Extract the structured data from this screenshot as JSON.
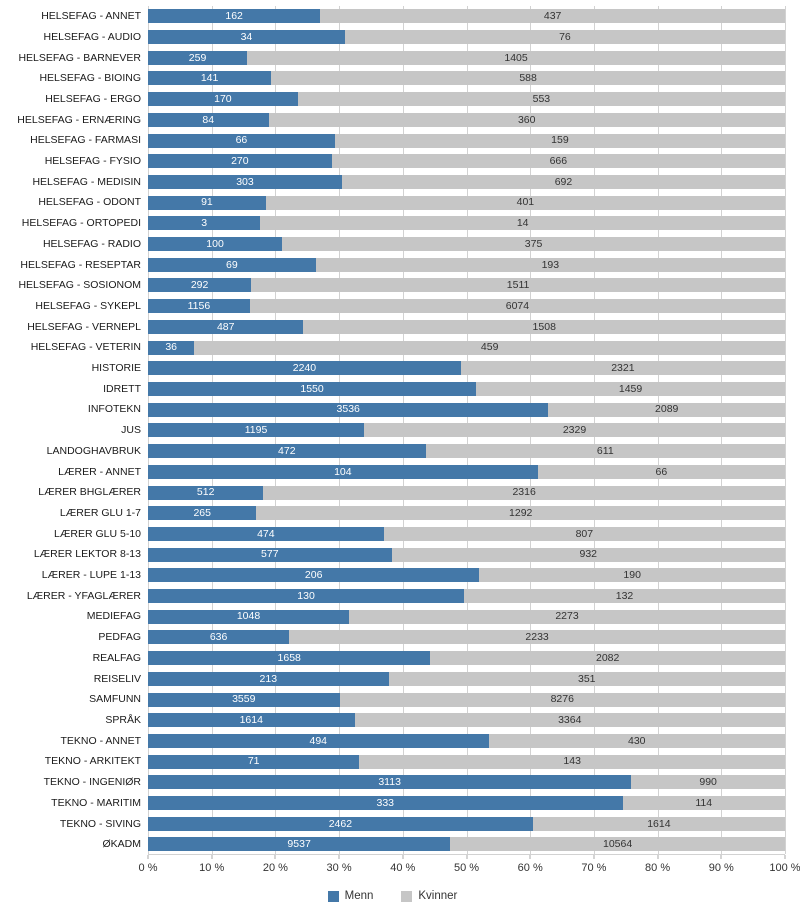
{
  "chart_data": {
    "type": "bar",
    "variant": "stacked-100-percent",
    "orientation": "horizontal",
    "title": "",
    "xlabel": "",
    "ylabel": "",
    "xlim": [
      0,
      100
    ],
    "grid": true,
    "legend_position": "bottom",
    "x_ticks": [
      "0 %",
      "10 %",
      "20 %",
      "30 %",
      "40 %",
      "50 %",
      "60 %",
      "70 %",
      "80 %",
      "90 %",
      "100 %"
    ],
    "categories": [
      "HELSEFAG - ANNET",
      "HELSEFAG - AUDIO",
      "HELSEFAG - BARNEVER",
      "HELSEFAG - BIOING",
      "HELSEFAG - ERGO",
      "HELSEFAG - ERNÆRING",
      "HELSEFAG - FARMASI",
      "HELSEFAG - FYSIO",
      "HELSEFAG - MEDISIN",
      "HELSEFAG - ODONT",
      "HELSEFAG - ORTOPEDI",
      "HELSEFAG - RADIO",
      "HELSEFAG - RESEPTAR",
      "HELSEFAG - SOSIONOM",
      "HELSEFAG - SYKEPL",
      "HELSEFAG - VERNEPL",
      "HELSEFAG - VETERIN",
      "HISTORIE",
      "IDRETT",
      "INFOTEKN",
      "JUS",
      "LANDOGHAVBRUK",
      "LÆRER - ANNET",
      "LÆRER BHGLÆRER",
      "LÆRER GLU 1-7",
      "LÆRER GLU 5-10",
      "LÆRER LEKTOR 8-13",
      "LÆRER - LUPE 1-13",
      "LÆRER - YFAGLÆRER",
      "MEDIEFAG",
      "PEDFAG",
      "REALFAG",
      "REISELIV",
      "SAMFUNN",
      "SPRÅK",
      "TEKNO - ANNET",
      "TEKNO - ARKITEKT",
      "TEKNO - INGENIØR",
      "TEKNO - MARITIM",
      "TEKNO - SIVING",
      "ØKADM"
    ],
    "series": [
      {
        "name": "Menn",
        "color": "#4478a8",
        "values": [
          162,
          34,
          259,
          141,
          170,
          84,
          66,
          270,
          303,
          91,
          3,
          100,
          69,
          292,
          1156,
          487,
          36,
          2240,
          1550,
          3536,
          1195,
          472,
          104,
          512,
          265,
          474,
          577,
          206,
          130,
          1048,
          636,
          1658,
          213,
          3559,
          1614,
          494,
          71,
          3113,
          333,
          2462,
          9537
        ]
      },
      {
        "name": "Kvinner",
        "color": "#c6c6c6",
        "values": [
          437,
          76,
          1405,
          588,
          553,
          360,
          159,
          666,
          692,
          401,
          14,
          375,
          193,
          1511,
          6074,
          1508,
          459,
          2321,
          1459,
          2089,
          2329,
          611,
          66,
          2316,
          1292,
          807,
          932,
          190,
          132,
          2273,
          2233,
          2082,
          351,
          8276,
          3364,
          430,
          143,
          990,
          114,
          1614,
          10564
        ]
      }
    ]
  }
}
